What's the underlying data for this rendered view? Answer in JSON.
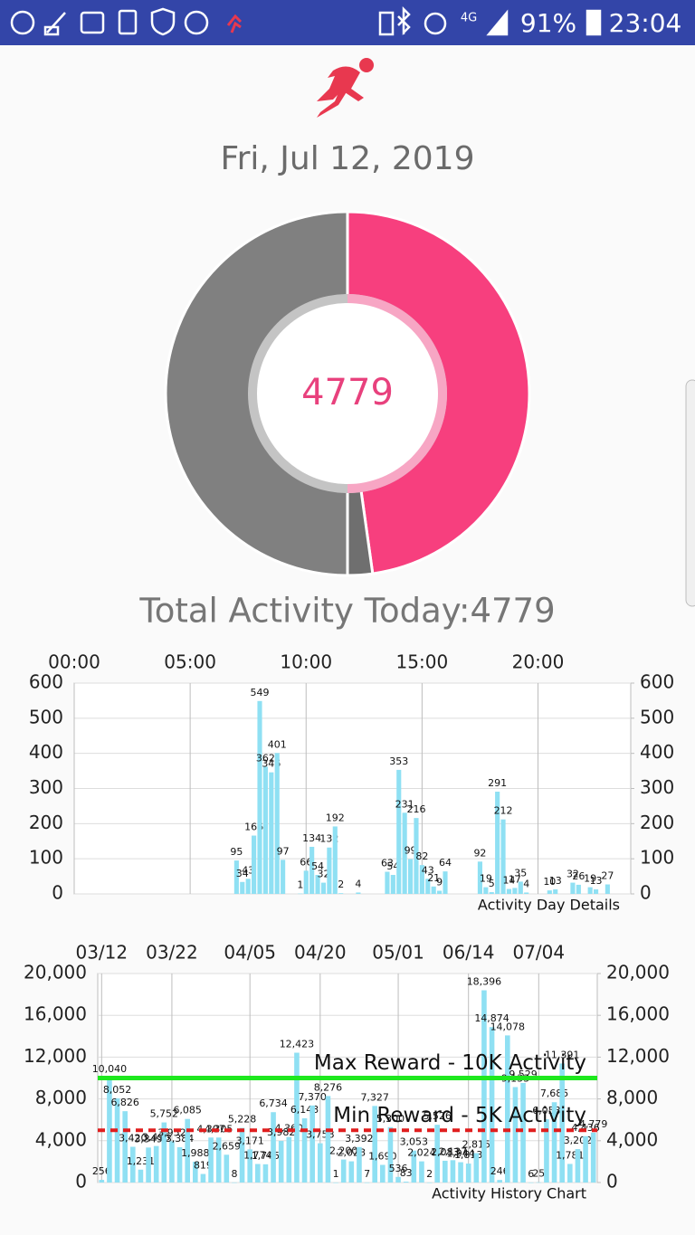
{
  "status_bar": {
    "network": "4G",
    "battery": "91%",
    "time": "23:04"
  },
  "date": "Fri, Jul 12, 2019",
  "total_label": "Total Activity Today:4779",
  "chart_data": [
    {
      "type": "donut",
      "values": [
        4779,
        221,
        5000
      ],
      "colors": [
        "#f73f7e",
        "#6f6f6f",
        "#808080"
      ],
      "center_value": 4779
    },
    {
      "type": "bar",
      "subtitle": "Activity Day Details",
      "x": [
        7.0,
        7.25,
        7.5,
        7.75,
        8.0,
        8.25,
        8.5,
        8.75,
        9.0,
        9.75,
        10.0,
        10.25,
        10.5,
        10.75,
        11.0,
        11.25,
        11.5,
        12.25,
        13.5,
        13.75,
        14.0,
        14.25,
        14.5,
        14.75,
        15.0,
        15.25,
        15.5,
        15.75,
        16.0,
        17.5,
        17.75,
        18.0,
        18.25,
        18.5,
        18.75,
        19.0,
        19.25,
        19.5,
        20.5,
        20.75,
        21.5,
        21.75,
        22.25,
        22.5,
        23.0
      ],
      "values": [
        95,
        34,
        43,
        166,
        549,
        362,
        346,
        401,
        97,
        1,
        66,
        134,
        54,
        32,
        132,
        192,
        2,
        4,
        63,
        54,
        353,
        231,
        99,
        216,
        82,
        43,
        21,
        9,
        64,
        92,
        19,
        5,
        291,
        212,
        14,
        17,
        35,
        4,
        10,
        13,
        32,
        26,
        19,
        13,
        27
      ],
      "color": "#8fe0f3",
      "xlim": [
        0,
        24
      ],
      "xticks": [
        {
          "value": 0,
          "label": "00:00"
        },
        {
          "value": 5,
          "label": "05:00"
        },
        {
          "value": 10,
          "label": "10:00"
        },
        {
          "value": 15,
          "label": "15:00"
        },
        {
          "value": 20,
          "label": "20:00"
        }
      ],
      "ylim": [
        0,
        600
      ],
      "yticks": [
        0,
        100,
        200,
        300,
        400,
        500,
        600
      ],
      "y2lim": [
        0,
        600
      ],
      "y2ticks": [
        0,
        100,
        200,
        300,
        400,
        500,
        600
      ],
      "grid": true
    },
    {
      "type": "bar",
      "subtitle": "Activity History Chart",
      "categories": [
        "03/12",
        null,
        null,
        null,
        null,
        null,
        null,
        null,
        null,
        "03/22",
        null,
        null,
        null,
        null,
        null,
        null,
        null,
        null,
        null,
        "04/05",
        null,
        null,
        null,
        null,
        null,
        null,
        null,
        null,
        "04/20",
        null,
        null,
        null,
        null,
        null,
        null,
        null,
        null,
        null,
        "05/01",
        null,
        null,
        null,
        null,
        null,
        null,
        null,
        null,
        "06/14",
        null,
        null,
        null,
        null,
        null,
        null,
        null,
        null,
        "07/04",
        null,
        null,
        null,
        null,
        null,
        null,
        null
      ],
      "values": [
        256,
        10040,
        8052,
        6826,
        3420,
        1231,
        3349,
        3495,
        5752,
        3952,
        3384,
        6085,
        1988,
        819,
        4307,
        4305,
        2659,
        8,
        5228,
        3171,
        1774,
        1745,
        6734,
        3982,
        4360,
        12423,
        6143,
        7370,
        3758,
        8276,
        1,
        2200,
        2028,
        3392,
        7,
        7327,
        1690,
        5300,
        536,
        83,
        3053,
        2024,
        2,
        5526,
        2083,
        2137,
        1944,
        1813,
        2815,
        18396,
        14874,
        246,
        14078,
        9133,
        9529,
        6,
        25,
        6053,
        7685,
        11391,
        1781,
        3202,
        4436,
        4779
      ],
      "value_labels": [
        "256",
        "10,040",
        "8,052",
        "6,826",
        "3,420",
        "1,231",
        "3,349",
        "3,495",
        "5,752",
        "3,952",
        "3,384",
        "6,085",
        "1,988",
        "819",
        "4,307",
        "4,305",
        "2,659",
        "8",
        "5,228",
        "3,171",
        "1,774",
        "1,745",
        "6,734",
        "3,982",
        "4,360",
        "12,423",
        "6,143",
        "7,370",
        "3,758",
        "8,276",
        "1",
        "2,200",
        "2,028",
        "3,392",
        "7",
        "7,327",
        "1,690",
        "5,300",
        "536",
        "83",
        "3,053",
        "2,024",
        "2",
        "5,526",
        "2,083",
        "2,137",
        "1,944",
        "1,813",
        "2,815",
        "18,396",
        "14,874",
        "246",
        "14,078",
        "9,133",
        "9,529",
        "6",
        "25",
        "6,053",
        "7,685",
        "11,391",
        "1,781",
        "3,202",
        "4,436",
        "4,779"
      ],
      "color": "#8fe0f3",
      "ylim": [
        0,
        20000
      ],
      "yticks": [
        0,
        {
          "value": 4000,
          "label": "4,000"
        },
        {
          "value": 8000,
          "label": "8,000"
        },
        {
          "value": 12000,
          "label": "12,000"
        },
        {
          "value": 16000,
          "label": "16,000"
        },
        {
          "value": 20000,
          "label": "20,000"
        }
      ],
      "y2lim": [
        0,
        20000
      ],
      "y2ticks": [
        0,
        {
          "value": 4000,
          "label": "4,000"
        },
        {
          "value": 8000,
          "label": "8,000"
        },
        {
          "value": 12000,
          "label": "12,000"
        },
        {
          "value": 16000,
          "label": "16,000"
        },
        {
          "value": 20000,
          "label": "20,000"
        }
      ],
      "grid": true,
      "reference_lines": [
        {
          "value": 10000,
          "label": "Max Reward - 10K Activity",
          "color": "#1ee81e",
          "style": "solid"
        },
        {
          "value": 5000,
          "label": "Min Reward - 5K Activity",
          "color": "#e01e1e",
          "style": "dashed"
        }
      ]
    }
  ]
}
